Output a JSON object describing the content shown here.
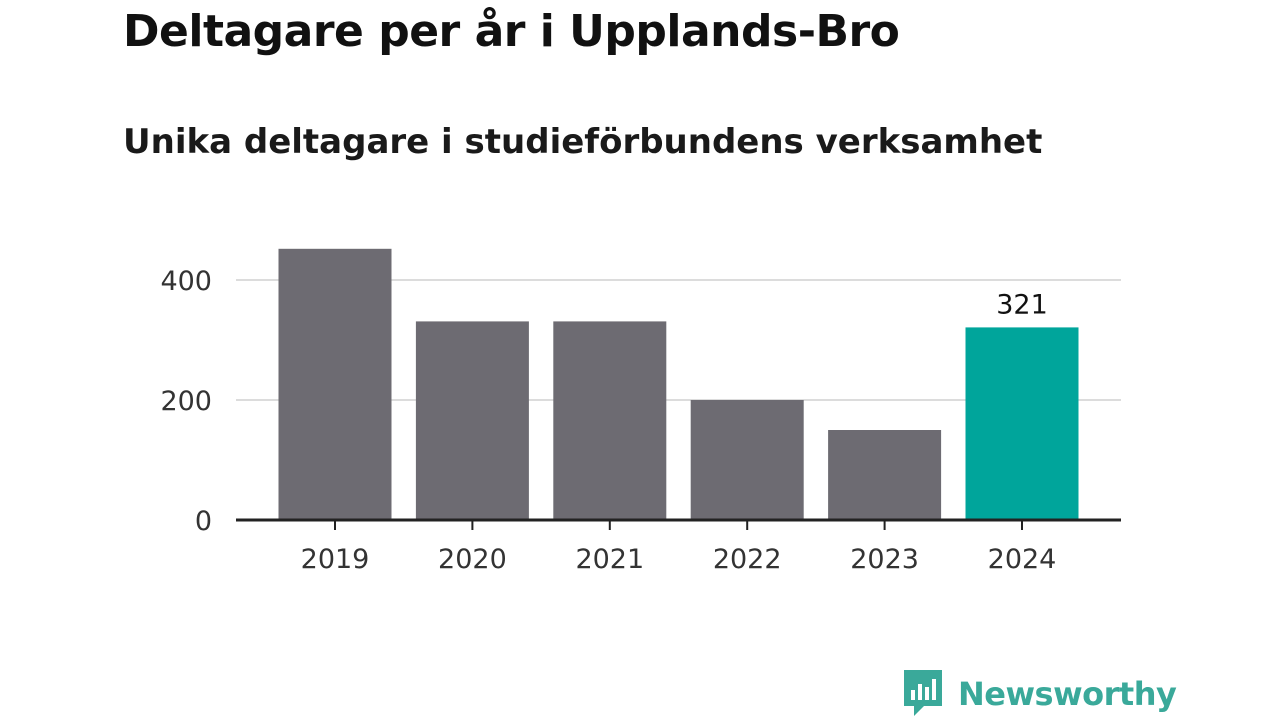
{
  "chart_data": {
    "type": "bar",
    "title": "Deltagare per år i Upplands-Bro",
    "subtitle": "Unika deltagare i studieförbundens verksamhet",
    "categories": [
      "2019",
      "2020",
      "2021",
      "2022",
      "2023",
      "2024"
    ],
    "values": [
      452,
      331,
      331,
      200,
      150,
      321
    ],
    "highlight": {
      "category": "2024",
      "label": "321"
    },
    "yticks": [
      0,
      200,
      400
    ],
    "ylim": [
      0,
      480
    ],
    "grid": true,
    "colors": {
      "bar": "#6d6b72",
      "highlight": "#00a59b",
      "grid": "#dcdcdc",
      "axis": "#222222"
    }
  },
  "brand": {
    "name": "Newsworthy",
    "icon": "newsworthy-logo-icon",
    "color": "#3aa99a"
  }
}
